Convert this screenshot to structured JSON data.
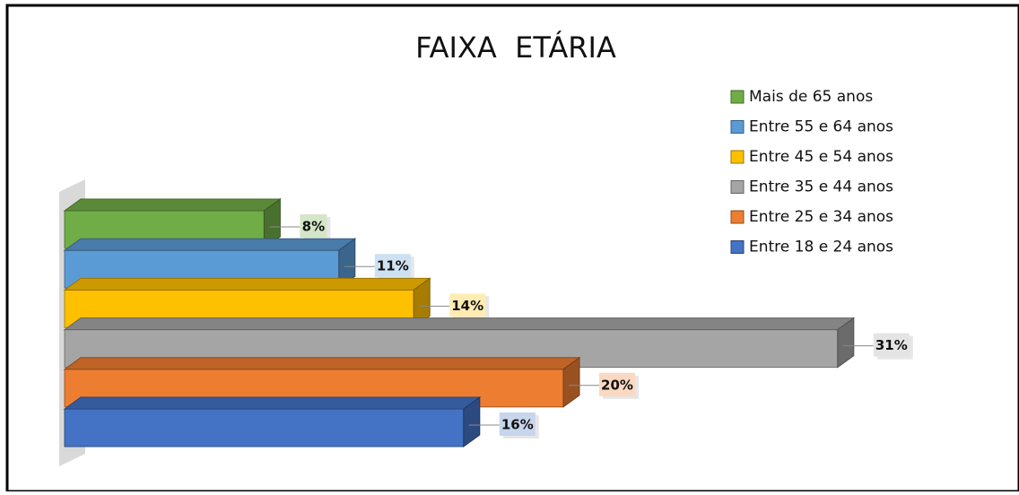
{
  "chart_data": {
    "type": "bar",
    "orientation": "horizontal",
    "title": "FAIXA  ETÁRIA",
    "categories": [
      "Entre 18 e 24 anos",
      "Entre 25 e 34 anos",
      "Entre 35 e 44 anos",
      "Entre 45 e 54 anos",
      "Entre 55 e 64 anos",
      "Mais de 65 anos"
    ],
    "values": [
      16,
      20,
      31,
      14,
      11,
      8
    ],
    "value_labels": [
      "16%",
      "20%",
      "31%",
      "14%",
      "11%",
      "8%"
    ],
    "colors": [
      "#4472c4",
      "#ed7d31",
      "#a5a5a5",
      "#ffc000",
      "#5b9bd5",
      "#70ad47"
    ],
    "legend": "right"
  }
}
